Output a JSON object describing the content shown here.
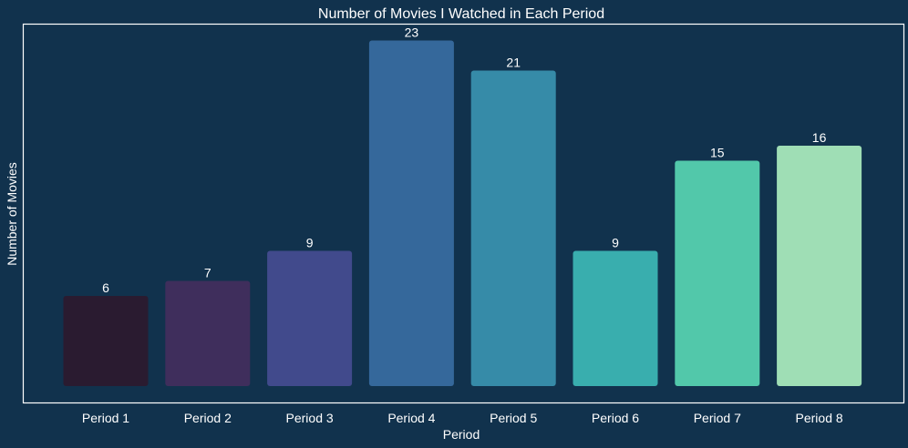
{
  "chart_data": {
    "type": "bar",
    "title": "Number of Movies I Watched in Each Period",
    "xlabel": "Period",
    "ylabel": "Number of Movies",
    "categories": [
      "Period 1",
      "Period 2",
      "Period 3",
      "Period 4",
      "Period 5",
      "Period 6",
      "Period 7",
      "Period 8"
    ],
    "values": [
      6,
      7,
      9,
      23,
      21,
      9,
      15,
      16
    ],
    "data_labels": [
      "6",
      "7",
      "9",
      "23",
      "21",
      "9",
      "15",
      "16"
    ],
    "bar_colors": [
      "#2a1b30",
      "#3f2e5c",
      "#414a8c",
      "#35689b",
      "#368ba8",
      "#39aeae",
      "#52c8aa",
      "#9fdeb5"
    ],
    "ylim": [
      0,
      24.2
    ],
    "grid": false,
    "legend": "none",
    "background_color": "#11324d",
    "frame_color": "#ffffff",
    "text_color": "#ffffff"
  }
}
